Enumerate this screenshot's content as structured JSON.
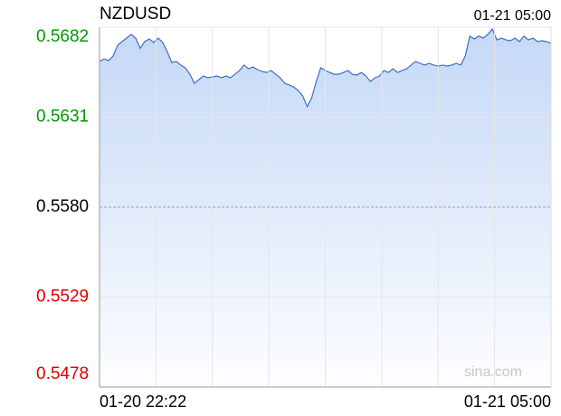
{
  "chart_data": {
    "type": "area",
    "title": "NZDUSD",
    "timestamp": "01-21 05:00",
    "watermark": "sina.com",
    "categories": [
      "01-20 22:22",
      null,
      null,
      null,
      null,
      null,
      null,
      null,
      null,
      null,
      null,
      null,
      null,
      null,
      null,
      null,
      null,
      null,
      null,
      null,
      null,
      null,
      null,
      null,
      null,
      null,
      null,
      null,
      null,
      null,
      null,
      null,
      null,
      null,
      null,
      null,
      null,
      null,
      null,
      null,
      null,
      null,
      null,
      null,
      null,
      null,
      null,
      null,
      null,
      null,
      null,
      null,
      null,
      null,
      null,
      null,
      null,
      null,
      null,
      null,
      null,
      null,
      null,
      null,
      null,
      null,
      null,
      null,
      null,
      null,
      null,
      null,
      null,
      null,
      null,
      null,
      null,
      null,
      null,
      null,
      null,
      null,
      null,
      null,
      null,
      null,
      null,
      null,
      null,
      null,
      null,
      null,
      null,
      null,
      null,
      null,
      null,
      null,
      null,
      null,
      "01-21 05:00"
    ],
    "values": [
      0.56625,
      0.5664,
      0.5663,
      0.56656,
      0.56717,
      0.56738,
      0.56758,
      0.56779,
      0.56758,
      0.567,
      0.56738,
      0.56753,
      0.56733,
      0.56758,
      0.56733,
      0.5668,
      0.5662,
      0.56625,
      0.56605,
      0.56589,
      0.56553,
      0.56502,
      0.56522,
      0.56543,
      0.56533,
      0.56538,
      0.56543,
      0.56533,
      0.56543,
      0.56533,
      0.56553,
      0.56574,
      0.56605,
      0.56584,
      0.56594,
      0.56579,
      0.56569,
      0.56563,
      0.56574,
      0.56553,
      0.56533,
      0.56502,
      0.56492,
      0.56481,
      0.56461,
      0.5643,
      0.56369,
      0.5642,
      0.56512,
      0.5659,
      0.56574,
      0.56563,
      0.56553,
      0.56553,
      0.56563,
      0.56574,
      0.56553,
      0.56548,
      0.56563,
      0.56543,
      0.56512,
      0.56533,
      0.56543,
      0.56574,
      0.56563,
      0.56584,
      0.56563,
      0.56574,
      0.56584,
      0.56605,
      0.56625,
      0.56615,
      0.56605,
      0.56615,
      0.56605,
      0.56599,
      0.56605,
      0.56599,
      0.56605,
      0.56615,
      0.56605,
      0.56656,
      0.56769,
      0.56753,
      0.56769,
      0.56758,
      0.56779,
      0.5681,
      0.56748,
      0.56758,
      0.56748,
      0.56743,
      0.56758,
      0.56738,
      0.56769,
      0.56748,
      0.56758,
      0.56738,
      0.56743,
      0.56738,
      0.56728
    ],
    "color": "#3f6fc1",
    "ylim": [
      0.5478,
      0.5682
    ],
    "yticks": [
      0.5478,
      0.5529,
      {
        "value": 0.558,
        "label": "0.5580"
      },
      0.5631,
      0.5682
    ],
    "up_color": "#009900",
    "down_color": "#e00000",
    "flat_color": "#000000",
    "grid": true
  }
}
